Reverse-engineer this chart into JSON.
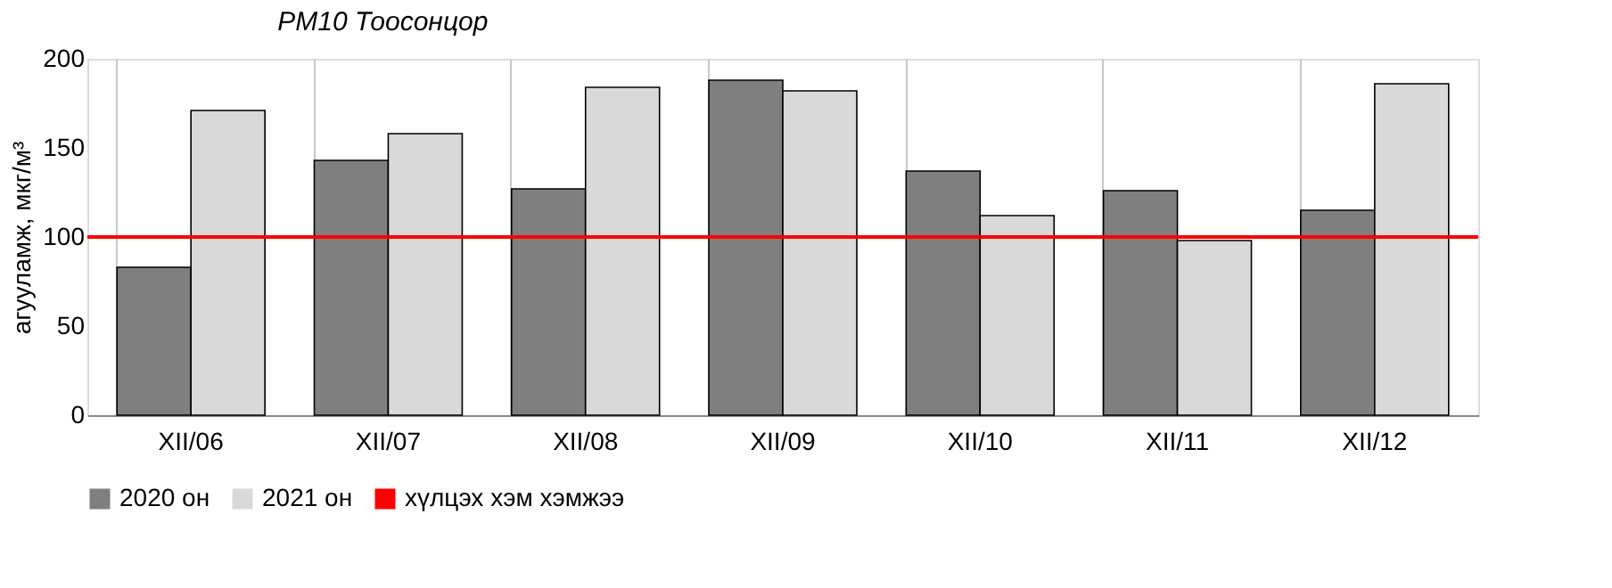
{
  "chart_data": {
    "type": "bar",
    "title": "PM10 Тоосонцор",
    "ylabel": "агууламж, мкг/м³",
    "categories": [
      "XII/06",
      "XII/07",
      "XII/08",
      "XII/09",
      "XII/10",
      "XII/11",
      "XII/12"
    ],
    "series": [
      {
        "name": "2020 он",
        "color": "#7f7f7f",
        "values": [
          83,
          143,
          127,
          188,
          137,
          126,
          115
        ]
      },
      {
        "name": "2021 он",
        "color": "#d9d9d9",
        "values": [
          171,
          158,
          184,
          182,
          112,
          98,
          186
        ]
      }
    ],
    "ylim": [
      0,
      200
    ],
    "yticks": [
      0,
      50,
      100,
      150,
      200
    ],
    "ref_lines": [
      {
        "axis": "y",
        "value": 100,
        "label": "хүлцэх хэм хэмжээ",
        "color": "#ff0000"
      }
    ],
    "grid": "x",
    "legend": "bottom"
  }
}
